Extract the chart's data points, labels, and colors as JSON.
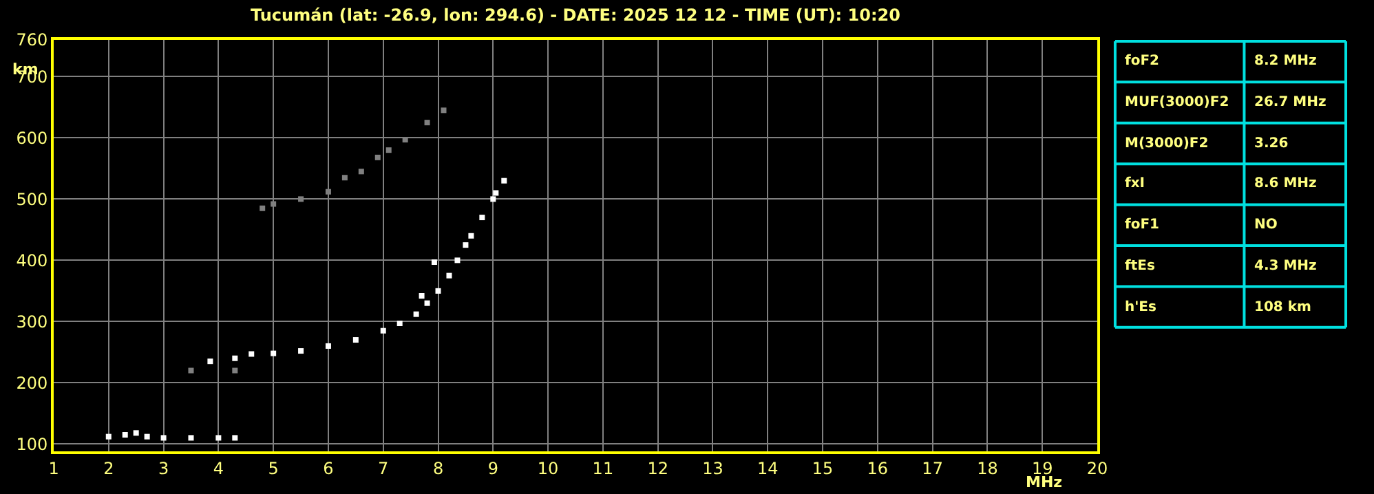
{
  "chart_data": [
    {
      "type": "scatter",
      "title": "Tucumán (lat: -26.9, lon: 294.6) - DATE: 2025 12 12 - TIME (UT): 10:20",
      "xlabel": "MHz",
      "ylabel": "km",
      "xlim": [
        1,
        20
      ],
      "xticks": [
        1,
        2,
        3,
        4,
        5,
        6,
        7,
        8,
        9,
        10,
        11,
        12,
        13,
        14,
        15,
        16,
        17,
        18,
        19,
        20
      ],
      "ylim": [
        88,
        760
      ],
      "yticks": [
        100,
        200,
        300,
        400,
        500,
        600,
        700,
        760
      ],
      "grid": true,
      "marker": "square",
      "series": [
        {
          "color": "#ffffff",
          "x": [
            3.85,
            4.3,
            4.6,
            5.0,
            5.5,
            6.0,
            6.5,
            7.0,
            7.3,
            7.6,
            7.8,
            8.0,
            8.2,
            8.35,
            8.5,
            8.6,
            8.8,
            9.0,
            7.7,
            7.93,
            9.05,
            9.2
          ],
          "values": [
            235,
            240,
            247,
            248,
            252,
            260,
            270,
            285,
            297,
            312,
            330,
            350,
            375,
            400,
            425,
            440,
            470,
            500,
            342,
            397,
            510,
            530
          ]
        },
        {
          "color": "#ffffff",
          "x": [
            2.0,
            2.3,
            2.5,
            2.7,
            3.0,
            3.5,
            4.0,
            4.3
          ],
          "values": [
            112,
            115,
            118,
            112,
            110,
            110,
            110,
            110
          ]
        },
        {
          "color": "#808080",
          "x": [
            4.8,
            5.0,
            5.5,
            6.0,
            6.3,
            6.6,
            6.9,
            7.1,
            7.4,
            7.8,
            8.1,
            3.5,
            4.3
          ],
          "values": [
            485,
            492,
            500,
            512,
            535,
            545,
            568,
            580,
            597,
            625,
            645,
            220,
            220
          ]
        }
      ]
    },
    {
      "type": "other",
      "annotations": [
        "foF2",
        "8.2 MHz",
        "MUF(3000)F2",
        "26.7 MHz",
        "M(3000)F2",
        "3.26",
        "fxI",
        "8.6 MHz",
        "foF1",
        "NO",
        "ftEs",
        "4.3 MHz",
        "h'Es",
        "108 km"
      ]
    }
  ]
}
